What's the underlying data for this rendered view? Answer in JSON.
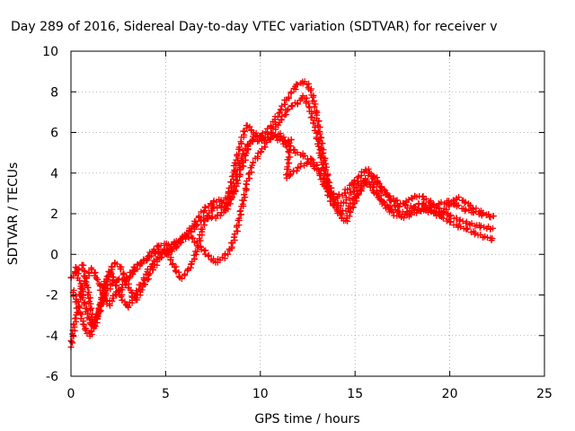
{
  "chart_data": {
    "type": "scatter",
    "title": "Day 289 of 2016, Sidereal Day-to-day VTEC variation (SDTVAR) for receiver v",
    "xlabel": "GPS time / hours",
    "ylabel": "SDTVAR / TECUs",
    "xlim": [
      0,
      25
    ],
    "ylim": [
      -6,
      10
    ],
    "xticks": [
      0,
      5,
      10,
      15,
      20,
      25
    ],
    "yticks": [
      -6,
      -4,
      -2,
      0,
      2,
      4,
      6,
      8,
      10
    ],
    "grid": true,
    "marker": "+",
    "colors": {
      "series": "#ff0000",
      "grid": "#a0a0a0",
      "frame": "#000000"
    },
    "series": [
      {
        "values": [
          [
            0.0,
            -4.5
          ],
          [
            0.2,
            -3.4
          ],
          [
            0.5,
            -2.0
          ],
          [
            0.8,
            -1.2
          ],
          [
            1.1,
            -0.7
          ],
          [
            1.4,
            -1.2
          ],
          [
            1.7,
            -2.0
          ],
          [
            2.0,
            -2.5
          ],
          [
            2.3,
            -2.0
          ],
          [
            2.6,
            -1.8
          ],
          [
            3.0,
            -1.2
          ],
          [
            3.4,
            -0.6
          ],
          [
            3.8,
            -0.4
          ],
          [
            4.2,
            -0.1
          ],
          [
            4.6,
            0.2
          ],
          [
            5.0,
            0.0
          ],
          [
            5.5,
            0.3
          ],
          [
            6.0,
            0.8
          ],
          [
            6.5,
            1.3
          ],
          [
            7.0,
            1.8
          ],
          [
            7.5,
            1.8
          ],
          [
            8.0,
            2.0
          ],
          [
            8.4,
            2.7
          ],
          [
            8.8,
            4.0
          ],
          [
            9.1,
            5.0
          ],
          [
            9.5,
            5.6
          ],
          [
            10.0,
            5.6
          ],
          [
            10.5,
            5.9
          ],
          [
            11.0,
            6.5
          ],
          [
            11.5,
            7.2
          ],
          [
            12.0,
            7.5
          ],
          [
            12.3,
            7.8
          ],
          [
            12.6,
            7.2
          ],
          [
            12.9,
            6.2
          ],
          [
            13.2,
            4.8
          ],
          [
            13.5,
            3.6
          ],
          [
            13.8,
            2.8
          ],
          [
            14.1,
            2.4
          ],
          [
            14.4,
            2.5
          ],
          [
            14.8,
            3.0
          ],
          [
            15.2,
            3.5
          ],
          [
            15.6,
            3.6
          ],
          [
            16.0,
            3.1
          ],
          [
            16.4,
            2.6
          ],
          [
            16.8,
            2.3
          ],
          [
            17.2,
            2.1
          ],
          [
            17.6,
            2.0
          ],
          [
            18.0,
            2.2
          ],
          [
            18.4,
            2.5
          ],
          [
            18.8,
            2.4
          ],
          [
            19.2,
            2.0
          ],
          [
            19.6,
            1.8
          ],
          [
            20.0,
            1.6
          ],
          [
            20.4,
            1.4
          ],
          [
            20.8,
            1.3
          ],
          [
            21.2,
            1.1
          ],
          [
            21.6,
            0.9
          ],
          [
            22.0,
            0.8
          ],
          [
            22.4,
            0.7
          ]
        ]
      },
      {
        "values": [
          [
            0.2,
            -0.6
          ],
          [
            0.5,
            -1.5
          ],
          [
            0.8,
            -2.8
          ],
          [
            1.1,
            -3.5
          ],
          [
            1.4,
            -3.0
          ],
          [
            1.7,
            -2.0
          ],
          [
            2.0,
            -1.0
          ],
          [
            2.3,
            -0.4
          ],
          [
            2.6,
            -0.6
          ],
          [
            3.0,
            -1.5
          ],
          [
            3.4,
            -2.3
          ],
          [
            3.8,
            -1.6
          ],
          [
            4.2,
            -0.9
          ],
          [
            4.6,
            -0.3
          ],
          [
            5.0,
            0.1
          ],
          [
            5.5,
            0.5
          ],
          [
            6.0,
            0.9
          ],
          [
            6.5,
            1.5
          ],
          [
            7.0,
            2.2
          ],
          [
            7.4,
            2.5
          ],
          [
            7.8,
            2.7
          ],
          [
            8.1,
            2.5
          ],
          [
            8.4,
            3.2
          ],
          [
            8.7,
            4.5
          ],
          [
            9.0,
            5.6
          ],
          [
            9.3,
            6.4
          ],
          [
            9.6,
            6.0
          ],
          [
            10.0,
            5.8
          ],
          [
            10.5,
            6.2
          ],
          [
            11.0,
            7.0
          ],
          [
            11.5,
            7.8
          ],
          [
            12.0,
            8.4
          ],
          [
            12.4,
            8.5
          ],
          [
            12.7,
            8.0
          ],
          [
            13.0,
            6.8
          ],
          [
            13.3,
            5.0
          ],
          [
            13.6,
            3.6
          ],
          [
            13.9,
            2.6
          ],
          [
            14.2,
            1.9
          ],
          [
            14.5,
            1.6
          ],
          [
            14.8,
            2.2
          ],
          [
            15.2,
            3.0
          ],
          [
            15.6,
            3.8
          ],
          [
            16.0,
            3.9
          ],
          [
            16.4,
            3.3
          ],
          [
            16.8,
            2.8
          ],
          [
            17.2,
            2.3
          ],
          [
            17.6,
            2.5
          ],
          [
            18.0,
            2.8
          ],
          [
            18.4,
            2.9
          ],
          [
            18.8,
            2.7
          ],
          [
            19.2,
            2.4
          ],
          [
            19.6,
            2.1
          ],
          [
            20.0,
            1.9
          ],
          [
            20.5,
            1.7
          ],
          [
            21.0,
            1.5
          ],
          [
            21.5,
            1.4
          ],
          [
            22.0,
            1.3
          ],
          [
            22.4,
            1.2
          ]
        ]
      },
      {
        "values": [
          [
            0.1,
            -1.8
          ],
          [
            0.4,
            -2.6
          ],
          [
            0.7,
            -3.6
          ],
          [
            1.0,
            -4.0
          ],
          [
            1.3,
            -3.4
          ],
          [
            1.6,
            -2.5
          ],
          [
            1.9,
            -1.8
          ],
          [
            2.2,
            -1.4
          ],
          [
            2.5,
            -1.2
          ],
          [
            2.8,
            -1.3
          ],
          [
            3.2,
            -1.0
          ],
          [
            3.6,
            -0.5
          ],
          [
            4.0,
            -0.2
          ],
          [
            4.4,
            0.3
          ],
          [
            4.8,
            0.5
          ],
          [
            5.2,
            0.5
          ],
          [
            5.6,
            0.6
          ],
          [
            6.0,
            0.9
          ],
          [
            6.4,
            0.8
          ],
          [
            6.8,
            0.4
          ],
          [
            7.2,
            0.0
          ],
          [
            7.6,
            -0.4
          ],
          [
            8.0,
            -0.2
          ],
          [
            8.4,
            0.2
          ],
          [
            8.7,
            1.0
          ],
          [
            9.0,
            2.2
          ],
          [
            9.3,
            3.5
          ],
          [
            9.6,
            4.5
          ],
          [
            10.0,
            5.0
          ],
          [
            10.4,
            5.6
          ],
          [
            10.8,
            5.8
          ],
          [
            11.2,
            5.5
          ],
          [
            11.6,
            5.2
          ],
          [
            12.0,
            5.0
          ],
          [
            12.4,
            4.8
          ],
          [
            12.8,
            4.6
          ],
          [
            13.2,
            4.0
          ],
          [
            13.6,
            3.2
          ],
          [
            14.0,
            2.8
          ],
          [
            14.4,
            3.0
          ],
          [
            14.8,
            3.4
          ],
          [
            15.2,
            3.8
          ],
          [
            15.6,
            4.2
          ],
          [
            16.0,
            3.8
          ],
          [
            16.4,
            3.2
          ],
          [
            16.8,
            2.8
          ],
          [
            17.2,
            2.6
          ],
          [
            17.6,
            2.4
          ],
          [
            18.0,
            2.3
          ],
          [
            18.4,
            2.2
          ],
          [
            18.8,
            2.3
          ],
          [
            19.2,
            2.4
          ],
          [
            19.6,
            2.5
          ],
          [
            20.0,
            2.6
          ],
          [
            20.4,
            2.4
          ],
          [
            20.8,
            2.2
          ],
          [
            21.2,
            2.1
          ],
          [
            21.6,
            2.0
          ],
          [
            22.0,
            1.9
          ],
          [
            22.4,
            1.8
          ]
        ]
      },
      {
        "values": [
          [
            0.0,
            -1.2
          ],
          [
            0.3,
            -0.8
          ],
          [
            0.6,
            -0.5
          ],
          [
            0.9,
            -1.8
          ],
          [
            1.2,
            -3.6
          ],
          [
            1.5,
            -2.8
          ],
          [
            1.8,
            -1.4
          ],
          [
            2.1,
            -0.9
          ],
          [
            2.4,
            -1.5
          ],
          [
            2.7,
            -2.2
          ],
          [
            3.0,
            -2.6
          ],
          [
            3.4,
            -2.0
          ],
          [
            3.8,
            -1.3
          ],
          [
            4.2,
            -0.6
          ],
          [
            4.6,
            -0.1
          ],
          [
            5.0,
            0.3
          ],
          [
            5.4,
            -0.5
          ],
          [
            5.8,
            -1.2
          ],
          [
            6.2,
            -0.8
          ],
          [
            6.6,
            0.0
          ],
          [
            7.0,
            1.5
          ],
          [
            7.4,
            2.2
          ],
          [
            7.8,
            2.4
          ],
          [
            8.2,
            2.2
          ],
          [
            8.6,
            3.0
          ],
          [
            9.0,
            4.2
          ],
          [
            9.4,
            5.4
          ],
          [
            9.8,
            5.9
          ],
          [
            10.2,
            5.6
          ],
          [
            10.6,
            5.8
          ],
          [
            11.0,
            5.9
          ],
          [
            11.4,
            5.5
          ],
          [
            11.6,
            5.7
          ],
          [
            11.4,
            3.8
          ],
          [
            11.8,
            4.1
          ],
          [
            12.2,
            4.4
          ],
          [
            12.6,
            4.5
          ],
          [
            13.0,
            4.2
          ],
          [
            13.4,
            3.4
          ],
          [
            13.8,
            2.5
          ],
          [
            14.2,
            2.0
          ],
          [
            14.6,
            2.2
          ],
          [
            15.0,
            2.8
          ],
          [
            15.4,
            3.4
          ],
          [
            15.8,
            3.6
          ],
          [
            16.2,
            3.0
          ],
          [
            16.6,
            2.4
          ],
          [
            17.0,
            2.0
          ],
          [
            17.4,
            1.8
          ],
          [
            17.8,
            1.9
          ],
          [
            18.2,
            2.1
          ],
          [
            18.6,
            2.2
          ],
          [
            19.0,
            2.1
          ],
          [
            19.5,
            2.0
          ],
          [
            20.0,
            2.4
          ],
          [
            20.4,
            2.8
          ],
          [
            20.8,
            2.6
          ],
          [
            21.2,
            2.3
          ],
          [
            21.6,
            2.1
          ],
          [
            22.0,
            1.9
          ],
          [
            22.4,
            1.8
          ]
        ]
      }
    ]
  }
}
